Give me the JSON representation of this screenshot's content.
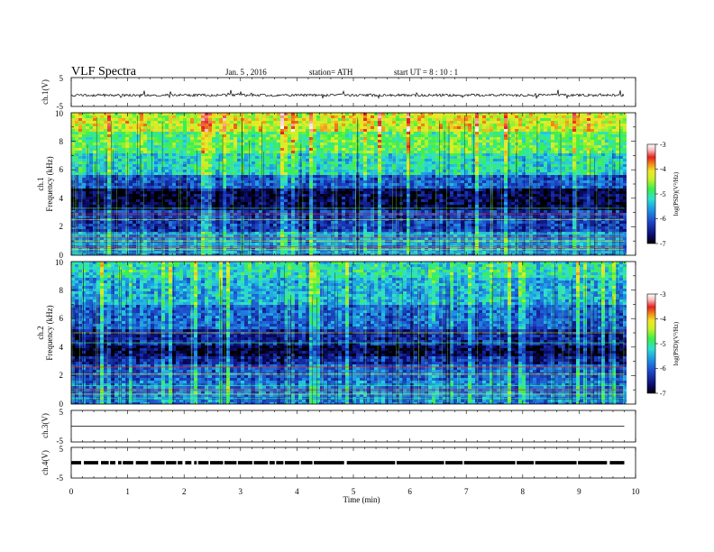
{
  "header": {
    "title": "VLF  Spectra",
    "date": "Jan.  5  ,  2016",
    "station": "station= ATH",
    "start": "start  UT  =    8  : 10 : 1"
  },
  "colors": {
    "waveform": "#000000",
    "spectrogram_scale": [
      "#000000",
      "#0a0a6e",
      "#1e46c8",
      "#1e9be6",
      "#2ee0d0",
      "#3cf048",
      "#c8f028",
      "#f0e628",
      "#f08c18",
      "#e62020",
      "#f7b8b8",
      "#ffffff"
    ]
  },
  "chart_data": [
    {
      "type": "line",
      "name": "ch1-waveform",
      "ylabel": "ch.1(V)",
      "ylim": [
        -5,
        5
      ],
      "ytick_labels": [
        "5",
        "-5"
      ],
      "x_range_min": [
        0,
        9.8
      ],
      "baseline_v": -1.1,
      "noise_peak_v": 1.5
    },
    {
      "type": "heatmap",
      "name": "ch1-spectrogram",
      "ylabel": "Frequency  (kHz)",
      "channel_label": "ch.1",
      "ylim": [
        0,
        10
      ],
      "ytick_labels": [
        "0",
        "2",
        "4",
        "6",
        "8",
        "10"
      ],
      "x_range_min": [
        0,
        9.8
      ],
      "colorbar": {
        "label": "log(PSD)(V²/Hz)",
        "ticks": [
          "-3",
          "-4",
          "-5",
          "-6",
          "-7"
        ],
        "range": [
          -7,
          -3
        ]
      },
      "bands": [
        {
          "from_khz": 0,
          "to_khz": 1.6,
          "level": 0.33
        },
        {
          "from_khz": 1.6,
          "to_khz": 3.2,
          "level": 0.2
        },
        {
          "from_khz": 3.2,
          "to_khz": 4.6,
          "level": 0.05
        },
        {
          "from_khz": 4.6,
          "to_khz": 5.6,
          "level": 0.24
        },
        {
          "from_khz": 5.6,
          "to_khz": 7.2,
          "level": 0.44
        },
        {
          "from_khz": 7.2,
          "to_khz": 8.6,
          "level": 0.55
        },
        {
          "from_khz": 8.6,
          "to_khz": 10,
          "level": 0.68
        }
      ],
      "line_freqs_khz": [
        0.2,
        0.4,
        0.6,
        0.8,
        1.0,
        1.25,
        1.5,
        2.5,
        2.9,
        3.3
      ]
    },
    {
      "type": "heatmap",
      "name": "ch2-spectrogram",
      "ylabel": "Frequency  (kHz)",
      "channel_label": "ch.2",
      "ylim": [
        0,
        10
      ],
      "ytick_labels": [
        "0",
        "2",
        "4",
        "6",
        "8",
        "10"
      ],
      "x_range_min": [
        0,
        9.8
      ],
      "colorbar": {
        "label": "log(PSD)(V²/Hz)",
        "ticks": [
          "-3",
          "-4",
          "-5",
          "-6",
          "-7"
        ],
        "range": [
          -7,
          -3
        ]
      },
      "bands": [
        {
          "from_khz": 0,
          "to_khz": 1.6,
          "level": 0.3
        },
        {
          "from_khz": 1.6,
          "to_khz": 2.8,
          "level": 0.26
        },
        {
          "from_khz": 2.8,
          "to_khz": 3.4,
          "level": 0.16
        },
        {
          "from_khz": 3.4,
          "to_khz": 4.2,
          "level": 0.05
        },
        {
          "from_khz": 4.2,
          "to_khz": 5.2,
          "level": 0.15
        },
        {
          "from_khz": 5.2,
          "to_khz": 7.0,
          "level": 0.27
        },
        {
          "from_khz": 7.0,
          "to_khz": 8.8,
          "level": 0.38
        },
        {
          "from_khz": 8.8,
          "to_khz": 10,
          "level": 0.46
        }
      ],
      "line_freqs_khz": [
        0.4,
        0.7,
        1.0,
        1.3,
        2.1,
        2.6,
        4.3,
        5.0
      ]
    },
    {
      "type": "line",
      "name": "ch3-waveform",
      "ylabel": "ch.3(V)",
      "ylim": [
        -5,
        5
      ],
      "ytick_labels": [
        "5",
        "-5"
      ],
      "x_range_min": [
        0,
        9.8
      ],
      "baseline_v": 0
    },
    {
      "type": "line",
      "name": "ch4-waveform",
      "ylabel": "ch.4(V)",
      "ylim": [
        -5,
        5
      ],
      "ytick_labels": [
        "5",
        "-5"
      ],
      "x_range_min": [
        0,
        9.8
      ],
      "baseline_v": 0,
      "band_halfwidth_v": 0.55
    }
  ],
  "xaxis": {
    "label": "Time  (min)",
    "ticks": [
      "0",
      "1",
      "2",
      "3",
      "4",
      "5",
      "6",
      "7",
      "8",
      "9",
      "10"
    ],
    "range": [
      0,
      10
    ]
  }
}
